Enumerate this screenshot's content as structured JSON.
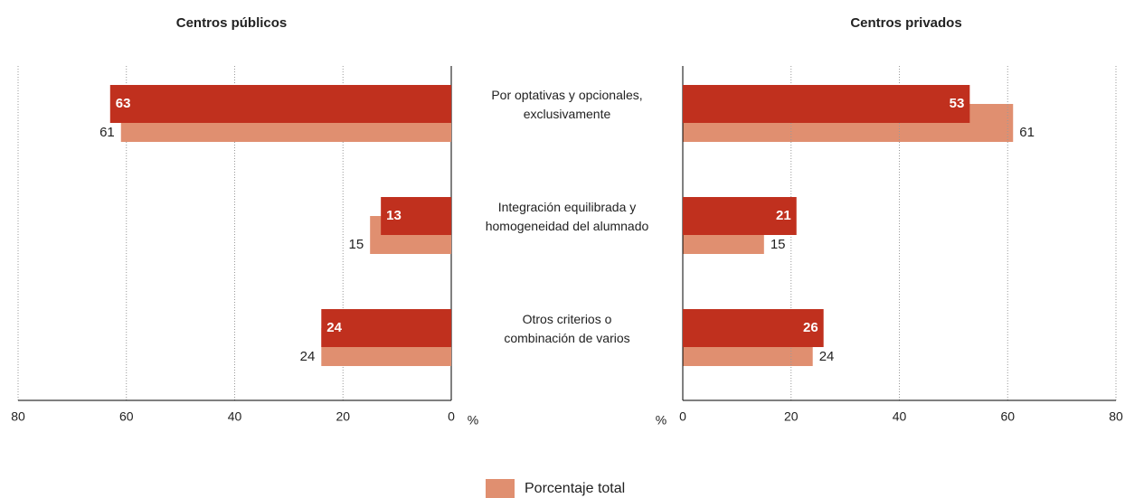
{
  "chart_data": [
    {
      "type": "bar",
      "orientation": "horizontal",
      "title": "Centros públicos",
      "xlabel": "%",
      "xreverse": true,
      "categories": [
        "Por optativas y opcionales,\nexclusivamente",
        "Integración equilibrada y\nhomogeneidad del alumnado",
        "Otros criterios o\ncombinación de varios"
      ],
      "series": [
        {
          "color": "#c0301e",
          "values": [
            63,
            13,
            24
          ]
        },
        {
          "name": "Porcentaje total",
          "color": "#e08f70",
          "values": [
            61,
            15,
            24
          ]
        }
      ],
      "xlim": [
        0,
        80
      ],
      "xticks": [
        0,
        20,
        40,
        60,
        80
      ],
      "grid": true
    },
    {
      "type": "bar",
      "orientation": "horizontal",
      "title": "Centros privados",
      "xlabel": "%",
      "xreverse": false,
      "series": [
        {
          "color": "#c0301e",
          "values": [
            53,
            21,
            26
          ]
        },
        {
          "color": "#e08f70",
          "values": [
            61,
            15,
            24
          ]
        }
      ],
      "xlim": [
        0,
        80
      ],
      "xticks": [
        0,
        20,
        40,
        60,
        80
      ],
      "grid": true
    }
  ]
}
